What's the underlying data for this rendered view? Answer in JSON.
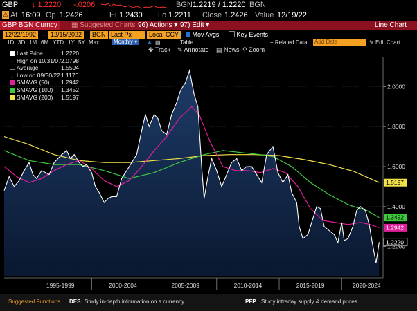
{
  "header": {
    "ticker": "GBP",
    "price": "↓ 1.2220",
    "change": "-.0206",
    "bid_ask_label": "BGN",
    "bid_ask": "1.2219 / 1.2220",
    "bid_ask_src": "BGN",
    "at_label": "At",
    "time": "16:09",
    "op_label": "Op",
    "open": "1.2426",
    "hi_label": "Hi",
    "high": "1.2430",
    "lo_label": "Lo",
    "low": "1.2211",
    "close_label": "Close",
    "close": "1.2426",
    "value_label": "Value",
    "value_date": "12/19/22"
  },
  "function_bar": {
    "security": "GBP BGN Curncy",
    "suggested": "Suggested Charts",
    "actions": "Actions",
    "edit": "Edit",
    "chart_type": "Line Chart",
    "actions_num": "96)",
    "edit_num": "97)"
  },
  "inputs": {
    "start_date": "12/22/1992",
    "end_date": "12/15/2022",
    "source": "BGN",
    "field": "Last Px",
    "currency": "Local CCY",
    "mov_avgs": "Mov Avgs",
    "key_events": "Key Events"
  },
  "periods": [
    "1D",
    "3D",
    "1M",
    "6M",
    "YTD",
    "1Y",
    "5Y",
    "Max"
  ],
  "frequency": "Monthly",
  "table_label": "Table",
  "toolbar": {
    "track": "Track",
    "annotate": "Annotate",
    "news": "News",
    "zoom": "Zoom",
    "related_data": "+ Related Data",
    "add_data": "Add Data",
    "edit_chart": "Edit Chart"
  },
  "legend": [
    {
      "label": "Last Price",
      "value": "1.2220",
      "color": "#ffffff",
      "marker": "square"
    },
    {
      "label": "High on 10/31/07",
      "value": "2.0798",
      "color": "#ffffff",
      "marker": "up"
    },
    {
      "label": "Average",
      "value": "1.5594",
      "color": "#ffffff",
      "marker": "dash"
    },
    {
      "label": "Low on 09/30/22",
      "value": "1.1170",
      "color": "#ffffff",
      "marker": "down"
    },
    {
      "label": "SMAVG (50)",
      "value": "1.2942",
      "color": "#e0209a",
      "marker": "square"
    },
    {
      "label": "SMAVG (100)",
      "value": "1.3452",
      "color": "#3ec83e",
      "marker": "square"
    },
    {
      "label": "SMAVG (200)",
      "value": "1.5197",
      "color": "#f2e24a",
      "marker": "square"
    }
  ],
  "bottom_bar": {
    "suggested_functions": "Suggested Functions",
    "f1_code": "DES",
    "f1_text": "Study in-depth information on a currency",
    "f2_code": "PFP",
    "f2_text": "Study intraday supply & demand prices"
  },
  "chart_data": {
    "type": "line",
    "ylim": [
      1.05,
      2.15
    ],
    "xlim": [
      1993.0,
      2023.2
    ],
    "y_ticks": [
      1.2,
      1.4,
      1.6,
      1.8,
      2.0
    ],
    "y_tick_labels": [
      "1.2000",
      "1.4000",
      "1.6000",
      "1.8000",
      "2.0000"
    ],
    "x_tick_labels": [
      "1995-1999",
      "2000-2004",
      "2005-2009",
      "2010-2014",
      "2015-2019",
      "2020-2024"
    ],
    "x_tick_centers": [
      1997.5,
      2002.5,
      2007.5,
      2012.5,
      2017.5,
      2022.0
    ],
    "x_separators": [
      2000.0,
      2005.0,
      2010.0,
      2015.0,
      2020.0
    ],
    "colors": {
      "price": "#ffffff",
      "sma50": "#e0209a",
      "sma100": "#3ec83e",
      "sma200": "#f2e24a",
      "fill_top": "#1e3c68",
      "fill_bottom": "#0a1830"
    },
    "series": [
      {
        "key": "price",
        "x": [
          1993.0,
          1993.4,
          1993.8,
          1994.2,
          1994.6,
          1995.0,
          1995.3,
          1995.6,
          1996.0,
          1996.3,
          1996.6,
          1997.0,
          1997.3,
          1997.6,
          1998.0,
          1998.3,
          1998.6,
          1999.0,
          1999.3,
          1999.6,
          2000.0,
          2000.3,
          2000.6,
          2001.0,
          2001.3,
          2001.6,
          2002.0,
          2002.4,
          2002.8,
          2003.2,
          2003.6,
          2004.0,
          2004.3,
          2004.6,
          2005.0,
          2005.3,
          2005.6,
          2006.0,
          2006.4,
          2006.8,
          2007.1,
          2007.5,
          2007.83,
          2008.2,
          2008.5,
          2008.8,
          2009.0,
          2009.3,
          2009.6,
          2010.0,
          2010.4,
          2010.8,
          2011.2,
          2011.6,
          2012.0,
          2012.4,
          2012.8,
          2013.2,
          2013.6,
          2014.0,
          2014.5,
          2014.9,
          2015.3,
          2015.7,
          2016.0,
          2016.4,
          2016.6,
          2016.9,
          2017.3,
          2017.7,
          2018.0,
          2018.3,
          2018.6,
          2019.0,
          2019.4,
          2019.7,
          2020.0,
          2020.2,
          2020.5,
          2020.9,
          2021.2,
          2021.5,
          2021.9,
          2022.2,
          2022.5,
          2022.75,
          2023.0
        ],
        "y": [
          1.48,
          1.55,
          1.5,
          1.53,
          1.58,
          1.62,
          1.56,
          1.54,
          1.58,
          1.57,
          1.56,
          1.62,
          1.64,
          1.66,
          1.68,
          1.64,
          1.66,
          1.62,
          1.6,
          1.61,
          1.57,
          1.5,
          1.47,
          1.42,
          1.44,
          1.45,
          1.45,
          1.54,
          1.58,
          1.62,
          1.66,
          1.78,
          1.86,
          1.8,
          1.86,
          1.84,
          1.78,
          1.76,
          1.86,
          1.92,
          1.98,
          2.02,
          2.08,
          1.96,
          1.9,
          1.6,
          1.44,
          1.55,
          1.64,
          1.58,
          1.5,
          1.56,
          1.62,
          1.64,
          1.58,
          1.6,
          1.6,
          1.56,
          1.52,
          1.66,
          1.7,
          1.57,
          1.52,
          1.56,
          1.47,
          1.42,
          1.3,
          1.24,
          1.26,
          1.34,
          1.4,
          1.39,
          1.3,
          1.28,
          1.26,
          1.22,
          1.32,
          1.23,
          1.24,
          1.3,
          1.38,
          1.4,
          1.38,
          1.31,
          1.2,
          1.117,
          1.222
        ]
      },
      {
        "key": "sma50",
        "x": [
          1993.0,
          1994.0,
          1995.0,
          1996.0,
          1997.0,
          1998.0,
          1999.0,
          2000.0,
          2001.0,
          2002.0,
          2003.0,
          2004.0,
          2005.0,
          2006.0,
          2007.0,
          2008.0,
          2008.6,
          2009.5,
          2010.5,
          2011.5,
          2012.5,
          2013.5,
          2014.5,
          2015.5,
          2016.5,
          2017.5,
          2018.5,
          2019.5,
          2020.5,
          2021.5,
          2022.3,
          2023.0
        ],
        "y": [
          1.6,
          1.55,
          1.52,
          1.54,
          1.58,
          1.61,
          1.63,
          1.59,
          1.53,
          1.5,
          1.53,
          1.6,
          1.68,
          1.75,
          1.84,
          1.9,
          1.86,
          1.72,
          1.6,
          1.58,
          1.58,
          1.57,
          1.59,
          1.57,
          1.5,
          1.39,
          1.33,
          1.32,
          1.31,
          1.32,
          1.31,
          1.294
        ]
      },
      {
        "key": "sma100",
        "x": [
          1993.0,
          1995.0,
          1997.0,
          1999.0,
          2001.0,
          2003.0,
          2005.0,
          2007.0,
          2009.0,
          2010.5,
          2012.0,
          2013.5,
          2014.5,
          2016.0,
          2017.5,
          2019.0,
          2020.5,
          2022.0,
          2023.0
        ],
        "y": [
          1.68,
          1.63,
          1.61,
          1.61,
          1.58,
          1.54,
          1.57,
          1.62,
          1.66,
          1.68,
          1.67,
          1.66,
          1.65,
          1.6,
          1.52,
          1.46,
          1.41,
          1.38,
          1.345
        ]
      },
      {
        "key": "sma200",
        "x": [
          1993.0,
          1995.0,
          1997.0,
          1999.0,
          2001.0,
          2003.0,
          2005.0,
          2007.0,
          2009.0,
          2011.0,
          2013.0,
          2015.0,
          2017.0,
          2019.0,
          2021.0,
          2023.0
        ],
        "y": [
          1.75,
          1.71,
          1.66,
          1.63,
          1.62,
          1.62,
          1.63,
          1.64,
          1.655,
          1.66,
          1.66,
          1.655,
          1.635,
          1.61,
          1.575,
          1.52
        ]
      }
    ]
  }
}
